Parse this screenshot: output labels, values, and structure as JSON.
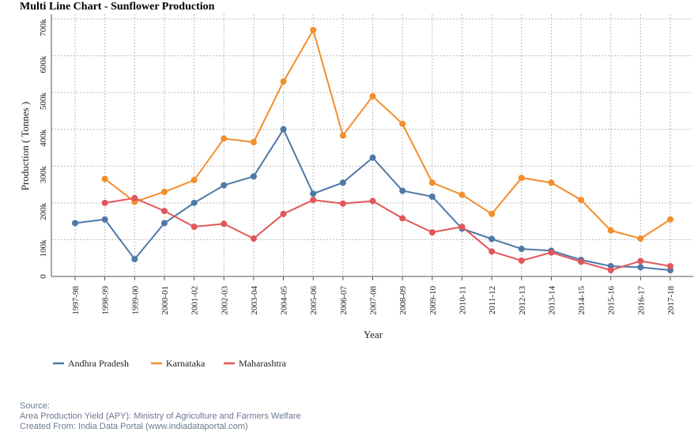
{
  "chart_data": {
    "type": "line",
    "title": "Multi Line Chart - Sunflower Production",
    "xlabel": "Year",
    "ylabel": "Production ( Tonnes )",
    "ylim": [
      0,
      700000
    ],
    "yticks": [
      0,
      100000,
      200000,
      300000,
      400000,
      500000,
      600000,
      700000
    ],
    "ytick_labels": [
      "0",
      "100k",
      "200k",
      "300k",
      "400k",
      "500k",
      "600k",
      "700k"
    ],
    "grid": true,
    "legend_position": "bottom-left",
    "categories": [
      "1997-98",
      "1998-99",
      "1999-00",
      "2000-01",
      "2001-02",
      "2002-03",
      "2003-04",
      "2004-05",
      "2005-06",
      "2006-07",
      "2007-08",
      "2008-09",
      "2009-10",
      "2010-11",
      "2011-12",
      "2012-13",
      "2013-14",
      "2014-15",
      "2015-16",
      "2016-17",
      "2017-18"
    ],
    "series": [
      {
        "name": "Andhra Pradesh",
        "color": "#4e79a7",
        "values": [
          145000,
          155000,
          47000,
          145000,
          200000,
          248000,
          272000,
          400000,
          225000,
          255000,
          323000,
          233000,
          217000,
          130000,
          102000,
          75000,
          70000,
          45000,
          28000,
          25000,
          17000
        ]
      },
      {
        "name": "Karnataka",
        "color": "#f28e2b",
        "values": [
          null,
          265000,
          203000,
          230000,
          262000,
          375000,
          365000,
          530000,
          670000,
          383000,
          490000,
          415000,
          255000,
          222000,
          170000,
          268000,
          255000,
          208000,
          125000,
          103000,
          155000
        ]
      },
      {
        "name": "Maharashtra",
        "color": "#e15759",
        "values": [
          null,
          200000,
          213000,
          178000,
          135000,
          143000,
          103000,
          170000,
          208000,
          198000,
          205000,
          158000,
          120000,
          135000,
          68000,
          43000,
          65000,
          40000,
          17000,
          42000,
          28000
        ]
      }
    ]
  },
  "source": {
    "line1": "Source:",
    "line2": "Area Production Yield (APY): Ministry of Agriculture and Farmers Welfare",
    "line3": "Created From: India Data Portal (www.indiadataportal.com)"
  }
}
